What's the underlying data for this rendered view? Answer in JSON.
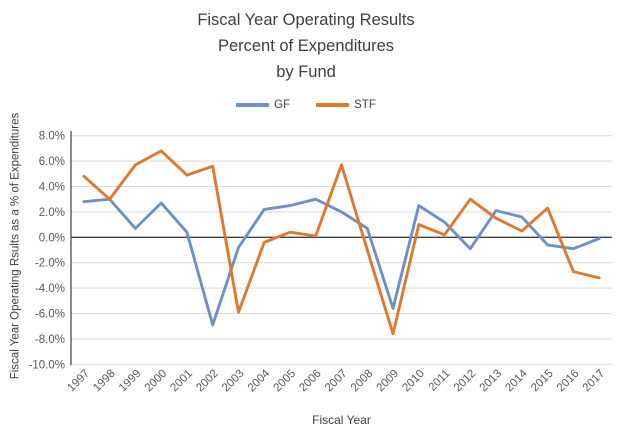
{
  "title": {
    "line1": "Fiscal Year Operating Results",
    "line2": "Percent of Expenditures",
    "line3": "by Fund"
  },
  "legend": [
    {
      "label": "GF",
      "color": "#7090C5"
    },
    {
      "label": "STF",
      "color": "#E2772E"
    }
  ],
  "axes": {
    "x_title": "Fiscal Year",
    "y_title": "Fiscal Year Operating Rsults  as a % of Expenditures"
  },
  "colors": {
    "background": "#FFFFFF",
    "gridline": "#D9D9D9",
    "zero_line": "#404040",
    "axis_line": "#595959",
    "tick_text": "#595959",
    "title_text": "#3F3F3F"
  },
  "chart_data": {
    "type": "line",
    "title": "Fiscal Year Operating Results Percent of Expenditures by Fund",
    "xlabel": "Fiscal Year",
    "ylabel": "Fiscal Year Operating Rsults as a % of Expenditures",
    "categories": [
      "1997",
      "1998",
      "1999",
      "2000",
      "2001",
      "2002",
      "2003",
      "2004",
      "2005",
      "2006",
      "2007",
      "2008",
      "2009",
      "2010",
      "2011",
      "2012",
      "2013",
      "2014",
      "2015",
      "2016",
      "2017"
    ],
    "series": [
      {
        "name": "GF",
        "color": "#7090C5",
        "values": [
          2.8,
          3.0,
          0.7,
          2.7,
          0.4,
          -6.9,
          -0.8,
          2.2,
          2.5,
          3.0,
          2.0,
          0.7,
          -5.6,
          2.5,
          1.2,
          -0.9,
          2.1,
          1.6,
          -0.6,
          -0.9,
          -0.1
        ]
      },
      {
        "name": "STF",
        "color": "#E2772E",
        "values": [
          4.8,
          3.0,
          5.7,
          6.8,
          4.9,
          5.6,
          -5.9,
          -0.4,
          0.4,
          0.1,
          5.7,
          -1.0,
          -7.6,
          1.0,
          0.2,
          3.0,
          1.5,
          0.5,
          2.3,
          -2.7,
          -3.2
        ]
      }
    ],
    "ylim": [
      -10,
      8
    ],
    "ytick_step": 2,
    "ytick_labels": [
      "8.0%",
      "6.0%",
      "4.0%",
      "2.0%",
      "0.0%",
      "-2.0%",
      "-4.0%",
      "-6.0%",
      "-8.0%",
      "-10.0%"
    ],
    "grid": true,
    "legend_position": "top",
    "units": "percent"
  }
}
